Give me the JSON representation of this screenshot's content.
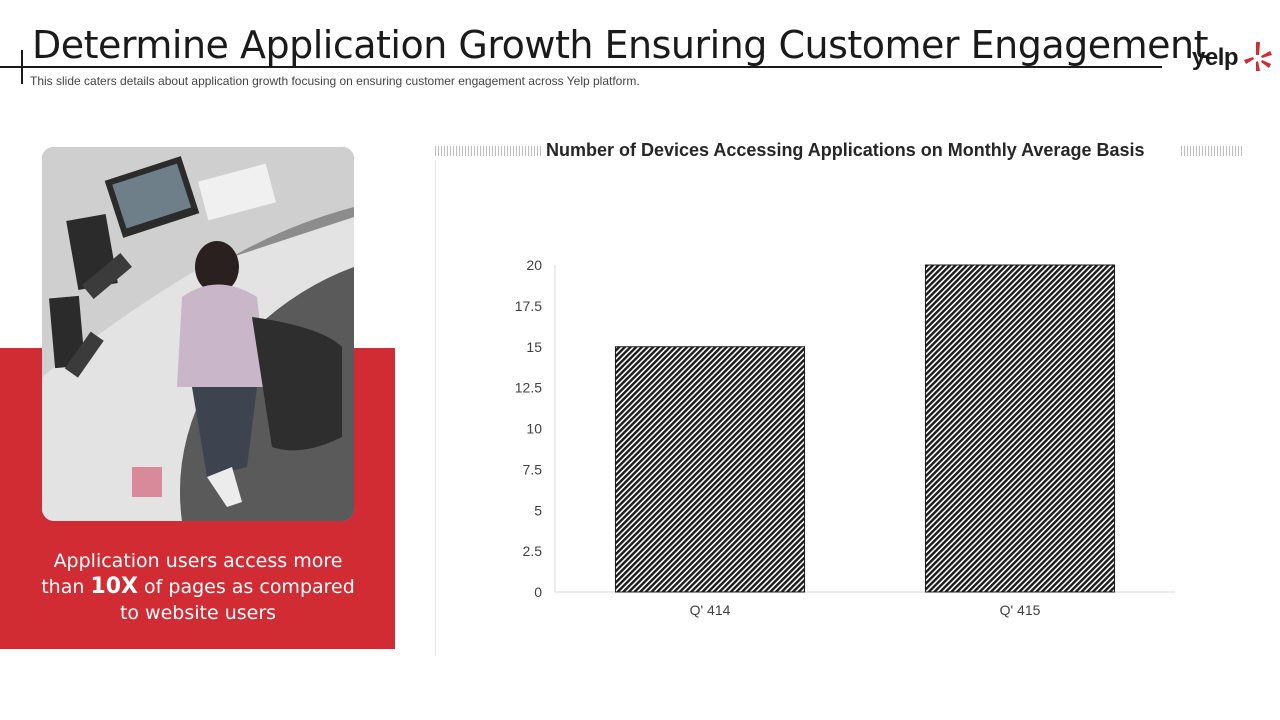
{
  "header": {
    "title": "Determine Application Growth Ensuring Customer Engagement",
    "subtitle": "This slide caters details about application growth focusing on ensuring customer engagement across Yelp platform."
  },
  "logo": {
    "text": "yelp",
    "icon": "yelp-burst-icon",
    "color": "#d12c34"
  },
  "photo": {
    "icon": "office-photo-image"
  },
  "panel": {
    "caption_line1": "Application users access more",
    "caption_pre": "than ",
    "caption_bold": "10X",
    "caption_post": " of pages as compared",
    "caption_line3": "to website users",
    "color": "#d12c34"
  },
  "chart_data": {
    "type": "bar",
    "title": "Number of Devices Accessing Applications on Monthly Average Basis",
    "categories": [
      "Q' 414",
      "Q' 415"
    ],
    "values": [
      15,
      20
    ],
    "ylim": [
      0,
      20
    ],
    "yticks": [
      "0",
      "2.5",
      "5",
      "7.5",
      "10",
      "12.5",
      "15",
      "17.5",
      "20"
    ],
    "xlabel": "",
    "ylabel": "",
    "grid": false,
    "bar_fill": "diagonal-hatch-black"
  }
}
